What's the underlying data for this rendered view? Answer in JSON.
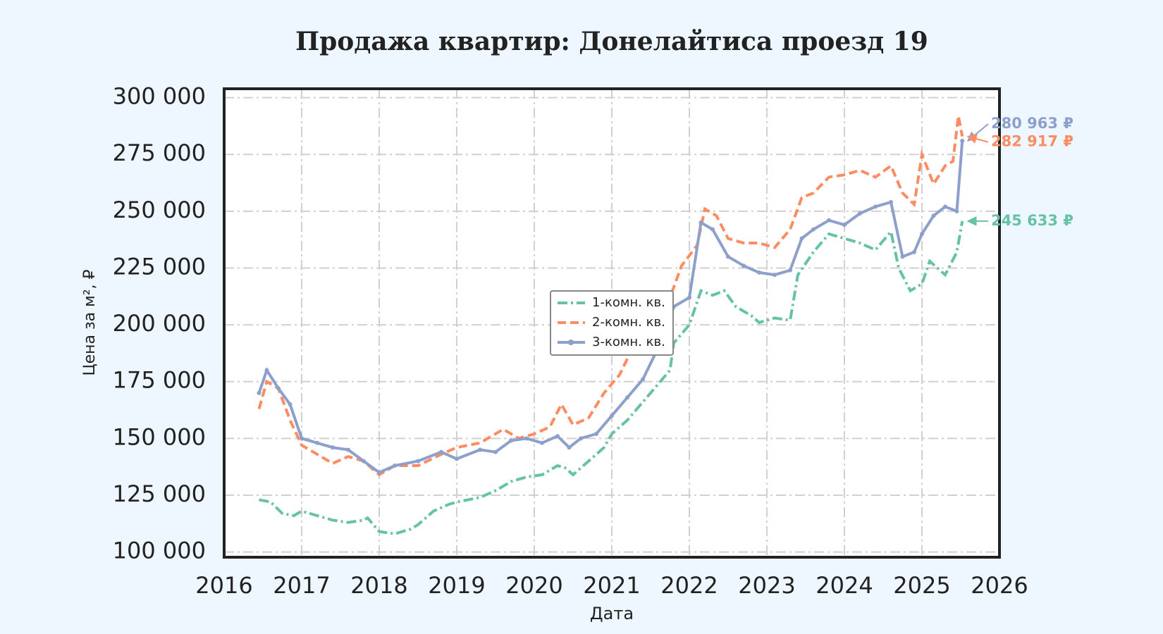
{
  "chart_data": {
    "type": "line",
    "title": "Продажа квартир: Донелайтиса проезд 19",
    "x_label": "Дата",
    "y_label": "Цена за м², ₽",
    "xlim": [
      2016,
      2026
    ],
    "xticks": [
      2016,
      2017,
      2018,
      2019,
      2020,
      2021,
      2022,
      2023,
      2024,
      2025,
      2026
    ],
    "ylim": [
      97700,
      303900
    ],
    "yticks": [
      {
        "value": 100000,
        "label": "100 000"
      },
      {
        "value": 125000,
        "label": "125 000"
      },
      {
        "value": 150000,
        "label": "150 000"
      },
      {
        "value": 175000,
        "label": "175 000"
      },
      {
        "value": 200000,
        "label": "200 000"
      },
      {
        "value": 225000,
        "label": "225 000"
      },
      {
        "value": 250000,
        "label": "250 000"
      },
      {
        "value": 275000,
        "label": "275 000"
      },
      {
        "value": 300000,
        "label": "300 000"
      }
    ],
    "grid": true,
    "legend": "center",
    "series": [
      {
        "name": "1-комн. кв.",
        "color": "#66c2a5",
        "style": "dashdot",
        "x": [
          2016.45,
          2016.6,
          2016.75,
          2016.9,
          2017.0,
          2017.2,
          2017.4,
          2017.6,
          2017.8,
          2017.85,
          2018.0,
          2018.2,
          2018.4,
          2018.5,
          2018.7,
          2018.9,
          2019.0,
          2019.3,
          2019.5,
          2019.7,
          2019.9,
          2020.1,
          2020.3,
          2020.4,
          2020.5,
          2020.7,
          2020.9,
          2021.0,
          2021.2,
          2021.4,
          2021.6,
          2021.75,
          2021.8,
          2022.0,
          2022.15,
          2022.3,
          2022.45,
          2022.6,
          2022.8,
          2022.9,
          2023.1,
          2023.3,
          2023.4,
          2023.6,
          2023.8,
          2024.0,
          2024.2,
          2024.4,
          2024.6,
          2024.7,
          2024.85,
          2025.0,
          2025.1,
          2025.3,
          2025.45,
          2025.52
        ],
        "values": [
          123000,
          122000,
          117000,
          116000,
          118000,
          116000,
          114000,
          113000,
          114000,
          115000,
          109000,
          108000,
          110000,
          112000,
          118000,
          121000,
          122000,
          124000,
          127000,
          131000,
          133000,
          134000,
          138000,
          137000,
          134000,
          140000,
          146000,
          152000,
          158000,
          166000,
          174000,
          180000,
          192000,
          200000,
          215000,
          213000,
          215000,
          208000,
          204000,
          201000,
          203000,
          202000,
          222000,
          232000,
          240000,
          238000,
          236000,
          233000,
          241000,
          225000,
          215000,
          218000,
          228000,
          222000,
          232000,
          245633
        ]
      },
      {
        "name": "2-комн. кв.",
        "color": "#fc8d62",
        "style": "dashed",
        "x": [
          2016.45,
          2016.55,
          2016.7,
          2016.85,
          2017.0,
          2017.2,
          2017.4,
          2017.6,
          2017.8,
          2018.0,
          2018.2,
          2018.5,
          2018.8,
          2019.0,
          2019.3,
          2019.6,
          2019.8,
          2020.0,
          2020.2,
          2020.35,
          2020.5,
          2020.7,
          2020.9,
          2021.1,
          2021.3,
          2021.55,
          2021.75,
          2021.9,
          2022.1,
          2022.2,
          2022.35,
          2022.5,
          2022.7,
          2022.9,
          2023.1,
          2023.3,
          2023.45,
          2023.6,
          2023.8,
          2024.0,
          2024.2,
          2024.4,
          2024.6,
          2024.75,
          2024.9,
          2025.0,
          2025.15,
          2025.3,
          2025.4,
          2025.47,
          2025.52
        ],
        "values": [
          163000,
          175000,
          172000,
          158000,
          147000,
          143000,
          139000,
          142000,
          140000,
          134000,
          138000,
          138000,
          143000,
          146000,
          148000,
          154000,
          150000,
          152000,
          155000,
          165000,
          156000,
          159000,
          170000,
          178000,
          192000,
          200000,
          212000,
          226000,
          235000,
          251000,
          248000,
          238000,
          236000,
          236000,
          234000,
          242000,
          256000,
          258000,
          265000,
          266000,
          268000,
          265000,
          270000,
          258000,
          253000,
          275000,
          262000,
          270000,
          272000,
          292000,
          282917
        ]
      },
      {
        "name": "3-комн. кв.",
        "color": "#8da0cb",
        "style": "solid",
        "x": [
          2016.45,
          2016.55,
          2016.7,
          2016.85,
          2017.0,
          2017.2,
          2017.4,
          2017.6,
          2017.8,
          2018.0,
          2018.2,
          2018.5,
          2018.8,
          2019.0,
          2019.3,
          2019.5,
          2019.7,
          2019.9,
          2020.1,
          2020.3,
          2020.45,
          2020.6,
          2020.8,
          2021.0,
          2021.2,
          2021.4,
          2021.6,
          2021.8,
          2022.0,
          2022.15,
          2022.3,
          2022.5,
          2022.7,
          2022.9,
          2023.1,
          2023.3,
          2023.45,
          2023.6,
          2023.8,
          2024.0,
          2024.2,
          2024.4,
          2024.6,
          2024.75,
          2024.9,
          2025.0,
          2025.15,
          2025.3,
          2025.45,
          2025.52
        ],
        "values": [
          170000,
          180000,
          172000,
          165000,
          150000,
          148000,
          146000,
          145000,
          140000,
          135000,
          138000,
          140000,
          144000,
          141000,
          145000,
          144000,
          149000,
          150000,
          148000,
          151000,
          146000,
          150000,
          152000,
          160000,
          168000,
          176000,
          190000,
          208000,
          212000,
          245000,
          242000,
          230000,
          226000,
          223000,
          222000,
          224000,
          238000,
          242000,
          246000,
          244000,
          249000,
          252000,
          254000,
          230000,
          232000,
          240000,
          248000,
          252000,
          250000,
          280963
        ]
      }
    ],
    "annotations": [
      {
        "label": "280 963 ₽",
        "value": 280963,
        "color": "#8da0cb"
      },
      {
        "label": "282 917 ₽",
        "value": 282917,
        "color": "#fc8d62"
      },
      {
        "label": "245 633 ₽",
        "value": 245633,
        "color": "#66c2a5"
      }
    ]
  }
}
